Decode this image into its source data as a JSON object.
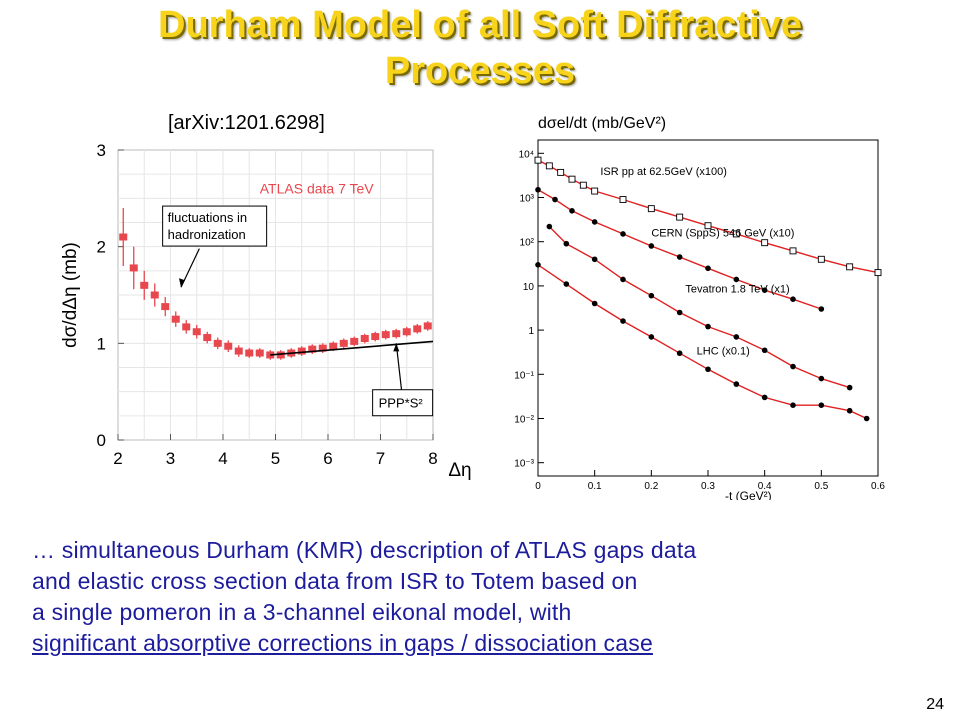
{
  "slide": {
    "title_line1": "Durham Model of all Soft Diffractive",
    "title_line2": "Processes",
    "reference": "[arXiv:1201.6298]",
    "description": [
      "… simultaneous Durham (KMR) description of ATLAS gaps data",
      "and elastic cross section data from ISR to Totem based on",
      "a single pomeron in a 3-channel eikonal model, with",
      "significant absorptive corrections in gaps / dissociation case"
    ],
    "page_number": "24",
    "colors": {
      "title": "#f7d31c",
      "text": "#1c1c9c",
      "data": "#e8474e",
      "curve": "#e02020"
    }
  },
  "chart_data": [
    {
      "type": "scatter",
      "ylabel": "dσ/dΔη  (mb)",
      "xlabel": "Δη",
      "xlim": [
        2,
        8
      ],
      "ylim": [
        0,
        3
      ],
      "xticks": [
        "2",
        "3",
        "4",
        "5",
        "6",
        "7",
        "8"
      ],
      "yticks": [
        "0",
        "1",
        "2",
        "3"
      ],
      "grid": true,
      "legend_text": "ATLAS data  7 TeV",
      "series": [
        {
          "name": "ATLAS data  7 TeV",
          "x": [
            2.1,
            2.3,
            2.5,
            2.7,
            2.9,
            3.1,
            3.3,
            3.5,
            3.7,
            3.9,
            4.1,
            4.3,
            4.5,
            4.7,
            4.9,
            5.1,
            5.3,
            5.5,
            5.7,
            5.9,
            6.1,
            6.3,
            6.5,
            6.7,
            6.9,
            7.1,
            7.3,
            7.5,
            7.7,
            7.9
          ],
          "y": [
            2.1,
            1.78,
            1.6,
            1.5,
            1.38,
            1.25,
            1.17,
            1.12,
            1.06,
            1.0,
            0.97,
            0.92,
            0.9,
            0.9,
            0.88,
            0.88,
            0.9,
            0.92,
            0.94,
            0.95,
            0.97,
            1.0,
            1.02,
            1.05,
            1.07,
            1.09,
            1.1,
            1.12,
            1.15,
            1.18
          ],
          "err": [
            0.3,
            0.22,
            0.15,
            0.12,
            0.1,
            0.08,
            0.07,
            0.07,
            0.06,
            0.06,
            0.06,
            0.06,
            0.05,
            0.05,
            0.05,
            0.05,
            0.05,
            0.05,
            0.05,
            0.05,
            0.05,
            0.05,
            0.05,
            0.05,
            0.05,
            0.05,
            0.05,
            0.05,
            0.05,
            0.05
          ]
        }
      ],
      "model_line": {
        "label": "PPP*S²",
        "x": [
          4.9,
          8.0
        ],
        "y": [
          0.88,
          1.02
        ]
      },
      "annotations": [
        {
          "text_line1": "fluctuations in",
          "text_line2": "hadronization",
          "arrow_to": [
            3.2,
            1.58
          ]
        },
        {
          "text": "PPP*S²",
          "arrow_to": [
            7.3,
            1.0
          ]
        }
      ]
    },
    {
      "type": "scatter",
      "ylabel": "dσel/dt  (mb/GeV²)",
      "xlabel": "-t  (GeV²)",
      "ylog": true,
      "xlim": [
        0,
        0.6
      ],
      "ylim": [
        0.0005,
        20000
      ],
      "xticks": [
        "0",
        "0.1",
        "0.2",
        "0.3",
        "0.4",
        "0.5",
        "0.6"
      ],
      "yticks": [
        "10⁴",
        "10³",
        "10²",
        "10",
        "1",
        "10⁻¹",
        "10⁻²",
        "10⁻³"
      ],
      "grid": false,
      "series": [
        {
          "name": "ISR pp at 62.5GeV   (x100)",
          "x": [
            0.0,
            0.02,
            0.04,
            0.06,
            0.08,
            0.1,
            0.15,
            0.2,
            0.25,
            0.3,
            0.35,
            0.4,
            0.45,
            0.5,
            0.55,
            0.6
          ],
          "y": [
            7000,
            5200,
            3700,
            2600,
            1900,
            1400,
            900,
            560,
            360,
            230,
            150,
            95,
            62,
            40,
            27,
            20
          ],
          "marker": "open-square"
        },
        {
          "name": "CERN (SppS) 546 GeV  (x10)",
          "x": [
            0.0,
            0.03,
            0.06,
            0.1,
            0.15,
            0.2,
            0.25,
            0.3,
            0.35,
            0.4,
            0.45,
            0.5
          ],
          "y": [
            1500,
            900,
            500,
            280,
            150,
            80,
            45,
            25,
            14,
            8,
            5,
            3
          ],
          "marker": "filled-circle"
        },
        {
          "name": "Tevatron 1.8 TeV  (x1)",
          "x": [
            0.02,
            0.05,
            0.1,
            0.15,
            0.2,
            0.25,
            0.3,
            0.35,
            0.4,
            0.45,
            0.5,
            0.55
          ],
          "y": [
            220,
            90,
            40,
            14,
            6,
            2.5,
            1.2,
            0.7,
            0.35,
            0.15,
            0.08,
            0.05
          ],
          "marker": "filled-circle"
        },
        {
          "name": "LHC   (x0.1)",
          "x": [
            0.0,
            0.05,
            0.1,
            0.15,
            0.2,
            0.25,
            0.3,
            0.35,
            0.4,
            0.45,
            0.5,
            0.55,
            0.58
          ],
          "y": [
            30,
            11,
            4,
            1.6,
            0.7,
            0.3,
            0.13,
            0.06,
            0.03,
            0.02,
            0.02,
            0.015,
            0.01
          ],
          "marker": "filled-circle"
        }
      ]
    }
  ]
}
